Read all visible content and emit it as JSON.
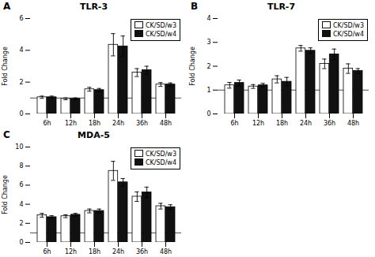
{
  "chart_data": [
    {
      "type": "bar",
      "title": "TLR-3",
      "annotation": "A",
      "categories": [
        "6h",
        "12h",
        "18h",
        "24h",
        "36h",
        "48h"
      ],
      "series": [
        {
          "name": "CK/SD/w3",
          "color": "#ffffff",
          "values": [
            1.05,
            0.95,
            1.55,
            4.35,
            2.6,
            1.85
          ],
          "errors": [
            0.07,
            0.06,
            0.12,
            0.7,
            0.25,
            0.12
          ]
        },
        {
          "name": "CK/SD/w4",
          "color": "#111111",
          "values": [
            1.05,
            0.95,
            1.5,
            4.25,
            2.75,
            1.85
          ],
          "errors": [
            0.07,
            0.06,
            0.1,
            0.65,
            0.25,
            0.1
          ]
        }
      ],
      "ylabel": "Fold Change",
      "ylim": [
        0,
        6
      ],
      "yticks": [
        0,
        2,
        4,
        6
      ],
      "hline": 1,
      "legend": "upper right"
    },
    {
      "type": "bar",
      "title": "TLR-7",
      "annotation": "B",
      "categories": [
        "6h",
        "12h",
        "18h",
        "24h",
        "36h",
        "48h"
      ],
      "series": [
        {
          "name": "CK/SD/w3",
          "color": "#ffffff",
          "values": [
            1.2,
            1.15,
            1.45,
            2.75,
            2.1,
            1.9
          ],
          "errors": [
            0.12,
            0.08,
            0.15,
            0.12,
            0.2,
            0.2
          ]
        },
        {
          "name": "CK/SD/w4",
          "color": "#111111",
          "values": [
            1.3,
            1.2,
            1.35,
            2.65,
            2.5,
            1.8
          ],
          "errors": [
            0.12,
            0.08,
            0.18,
            0.12,
            0.22,
            0.1
          ]
        }
      ],
      "ylabel": "Fold Change",
      "ylim": [
        0,
        4
      ],
      "yticks": [
        0,
        1,
        2,
        3,
        4
      ],
      "hline": 1,
      "legend": "upper right"
    },
    {
      "type": "bar",
      "title": "MDA-5",
      "annotation": "C",
      "categories": [
        "6h",
        "12h",
        "18h",
        "24h",
        "36h",
        "48h"
      ],
      "series": [
        {
          "name": "CK/SD/w3",
          "color": "#ffffff",
          "values": [
            2.85,
            2.75,
            3.3,
            7.5,
            4.8,
            3.8
          ],
          "errors": [
            0.2,
            0.15,
            0.2,
            1.0,
            0.5,
            0.3
          ]
        },
        {
          "name": "CK/SD/w4",
          "color": "#111111",
          "values": [
            2.65,
            2.9,
            3.3,
            6.3,
            5.25,
            3.7
          ],
          "errors": [
            0.15,
            0.15,
            0.2,
            0.4,
            0.55,
            0.25
          ]
        }
      ],
      "ylabel": "Fold Change",
      "ylim": [
        0,
        10
      ],
      "yticks": [
        0,
        2,
        4,
        6,
        8,
        10
      ],
      "hline": 1,
      "legend": "upper right"
    }
  ]
}
